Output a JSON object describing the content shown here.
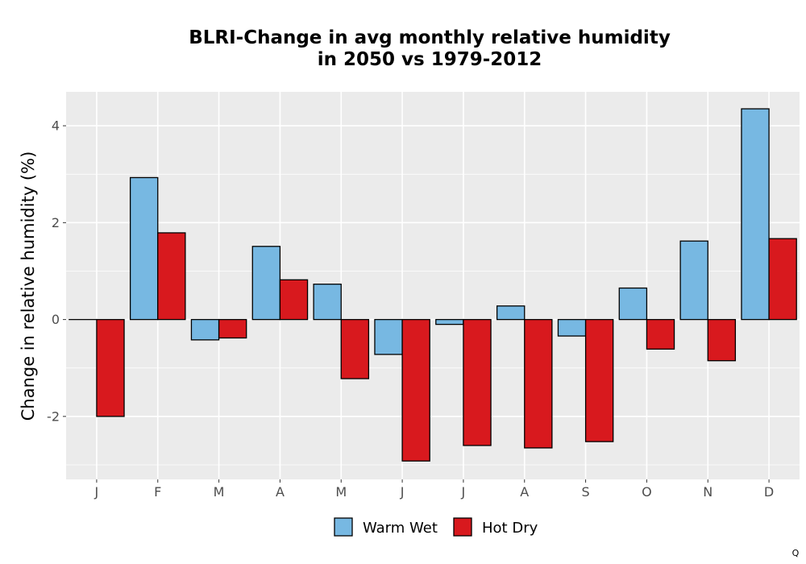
{
  "chart_data": {
    "type": "bar",
    "title_lines": [
      "BLRI-Change in avg monthly relative humidity",
      "in 2050 vs 1979-2012"
    ],
    "ylabel": "Change in relative humidity (%)",
    "xlabel": "",
    "categories": [
      "J",
      "F",
      "M",
      "A",
      "M",
      "J",
      "J",
      "A",
      "S",
      "O",
      "N",
      "D"
    ],
    "series": [
      {
        "name": "Warm Wet",
        "color": "#77b8e2",
        "values": [
          0.0,
          2.93,
          -0.42,
          1.51,
          0.73,
          -0.72,
          -0.1,
          0.28,
          -0.34,
          0.65,
          1.62,
          4.35
        ]
      },
      {
        "name": "Hot Dry",
        "color": "#d8191e",
        "values": [
          -2.0,
          1.79,
          -0.38,
          0.82,
          -1.22,
          -2.92,
          -2.6,
          -2.65,
          -2.52,
          -0.61,
          -0.85,
          1.67
        ]
      }
    ],
    "ylim": [
      -3.3,
      4.7
    ],
    "yticks": [
      -2,
      0,
      2,
      4
    ],
    "ytick_labels": [
      "-2",
      "0",
      "2",
      "4"
    ],
    "grid": true,
    "legend_position": "bottom"
  },
  "corner_mark": "Q"
}
